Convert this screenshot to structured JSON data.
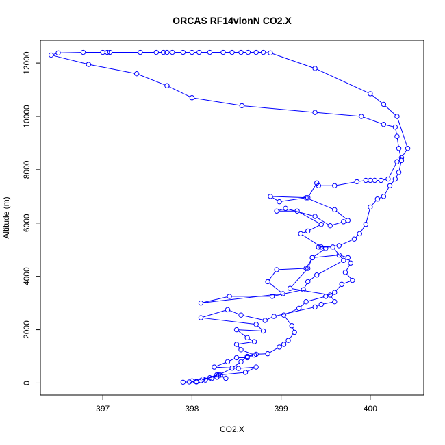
{
  "chart_data": {
    "type": "line",
    "title": "ORCAS RF14vlonN CO2.X",
    "xlabel": "CO2.X",
    "ylabel": "Altitude (m)",
    "xlim": [
      396.3,
      400.6
    ],
    "ylim": [
      -450,
      12850
    ],
    "x_ticks": [
      397,
      398,
      399,
      400
    ],
    "y_ticks": [
      0,
      2000,
      4000,
      6000,
      8000,
      10000,
      12000
    ],
    "marker": "open-circle",
    "color": "#0000ff",
    "series": [
      {
        "points": [
          [
            397.9,
            30
          ],
          [
            397.97,
            40
          ],
          [
            398.05,
            60
          ],
          [
            398.1,
            80
          ],
          [
            398.15,
            110
          ],
          [
            398.22,
            170
          ],
          [
            398.28,
            220
          ],
          [
            398.32,
            300
          ],
          [
            398.38,
            180
          ],
          [
            398.28,
            310
          ],
          [
            398.1,
            90
          ],
          [
            398.3,
            300
          ],
          [
            398.45,
            560
          ],
          [
            398.55,
            800
          ],
          [
            398.62,
            1000
          ],
          [
            398.72,
            1080
          ],
          [
            398.85,
            1100
          ],
          [
            398.98,
            1350
          ],
          [
            399.03,
            1450
          ],
          [
            399.08,
            1600
          ],
          [
            399.15,
            1900
          ],
          [
            399.12,
            2150
          ],
          [
            399.03,
            2550
          ],
          [
            399.2,
            2800
          ],
          [
            399.28,
            3050
          ],
          [
            399.5,
            3250
          ],
          [
            399.6,
            3400
          ],
          [
            399.68,
            3700
          ],
          [
            399.8,
            3850
          ],
          [
            399.72,
            4150
          ],
          [
            399.78,
            4500
          ],
          [
            399.75,
            4700
          ],
          [
            399.65,
            4800
          ],
          [
            399.35,
            4700
          ],
          [
            399.28,
            4300
          ],
          [
            398.95,
            4250
          ],
          [
            398.85,
            3800
          ],
          [
            399.02,
            3350
          ],
          [
            398.1,
            3000
          ],
          [
            398.42,
            3250
          ],
          [
            398.9,
            3250
          ],
          [
            399.25,
            3500
          ],
          [
            399.3,
            3800
          ],
          [
            399.4,
            4050
          ],
          [
            399.7,
            4600
          ],
          [
            399.58,
            5100
          ],
          [
            399.42,
            5100
          ],
          [
            399.65,
            5150
          ],
          [
            399.82,
            5400
          ],
          [
            399.88,
            5600
          ],
          [
            399.95,
            5950
          ],
          [
            400.0,
            6600
          ],
          [
            400.08,
            6900
          ],
          [
            400.15,
            7000
          ],
          [
            400.22,
            7400
          ],
          [
            400.28,
            7650
          ],
          [
            400.32,
            7900
          ],
          [
            400.35,
            8350
          ],
          [
            400.32,
            8800
          ],
          [
            400.3,
            9250
          ],
          [
            400.28,
            9600
          ],
          [
            400.15,
            9700
          ],
          [
            399.9,
            10000
          ],
          [
            399.38,
            10150
          ],
          [
            398.56,
            10400
          ],
          [
            398.0,
            10700
          ],
          [
            397.72,
            11150
          ],
          [
            397.38,
            11600
          ],
          [
            396.84,
            11950
          ],
          [
            396.42,
            12300
          ],
          [
            396.5,
            12380
          ],
          [
            396.78,
            12400
          ],
          [
            397.0,
            12400
          ],
          [
            397.05,
            12400
          ],
          [
            397.08,
            12400
          ],
          [
            397.42,
            12400
          ],
          [
            397.6,
            12400
          ],
          [
            397.68,
            12400
          ],
          [
            397.72,
            12400
          ],
          [
            397.78,
            12400
          ],
          [
            397.9,
            12400
          ],
          [
            398.0,
            12400
          ],
          [
            398.08,
            12400
          ],
          [
            398.2,
            12400
          ],
          [
            398.35,
            12400
          ],
          [
            398.45,
            12400
          ],
          [
            398.55,
            12400
          ],
          [
            398.63,
            12400
          ],
          [
            398.72,
            12400
          ],
          [
            398.8,
            12400
          ],
          [
            398.88,
            12380
          ],
          [
            399.38,
            11800
          ],
          [
            400.0,
            10850
          ],
          [
            400.15,
            10450
          ],
          [
            400.3,
            10000
          ],
          [
            400.42,
            8800
          ],
          [
            400.35,
            8450
          ],
          [
            400.3,
            8300
          ],
          [
            400.2,
            7650
          ],
          [
            400.12,
            7600
          ],
          [
            400.05,
            7600
          ],
          [
            400.0,
            7600
          ],
          [
            399.95,
            7600
          ],
          [
            399.85,
            7550
          ],
          [
            399.6,
            7400
          ],
          [
            399.42,
            7400
          ],
          [
            399.4,
            7500
          ],
          [
            399.3,
            6950
          ],
          [
            398.88,
            7000
          ],
          [
            398.98,
            6800
          ],
          [
            399.28,
            6950
          ],
          [
            399.6,
            6500
          ],
          [
            399.75,
            6100
          ],
          [
            399.7,
            6050
          ],
          [
            399.55,
            5900
          ],
          [
            399.38,
            6250
          ],
          [
            399.05,
            6550
          ],
          [
            398.95,
            6450
          ],
          [
            399.18,
            6450
          ],
          [
            399.45,
            5950
          ],
          [
            399.3,
            5700
          ],
          [
            399.22,
            5600
          ],
          [
            399.45,
            5100
          ],
          [
            399.5,
            5050
          ],
          [
            399.35,
            4700
          ],
          [
            399.3,
            4300
          ],
          [
            399.1,
            3550
          ],
          [
            399.55,
            3300
          ],
          [
            399.6,
            3050
          ],
          [
            399.45,
            2950
          ],
          [
            399.38,
            2850
          ],
          [
            398.92,
            2500
          ],
          [
            398.82,
            2350
          ],
          [
            398.55,
            2550
          ],
          [
            398.4,
            2750
          ],
          [
            398.1,
            2450
          ],
          [
            398.72,
            2200
          ],
          [
            398.8,
            1950
          ],
          [
            398.5,
            2000
          ],
          [
            398.62,
            1700
          ],
          [
            398.7,
            1550
          ],
          [
            398.5,
            1450
          ],
          [
            398.55,
            1250
          ],
          [
            398.7,
            1050
          ],
          [
            398.62,
            950
          ],
          [
            398.5,
            950
          ],
          [
            398.4,
            800
          ],
          [
            398.25,
            600
          ],
          [
            398.52,
            550
          ],
          [
            398.72,
            600
          ],
          [
            398.6,
            400
          ],
          [
            398.3,
            300
          ],
          [
            398.2,
            200
          ],
          [
            398.12,
            150
          ],
          [
            398.0,
            80
          ],
          [
            398.05,
            40
          ]
        ]
      }
    ]
  }
}
